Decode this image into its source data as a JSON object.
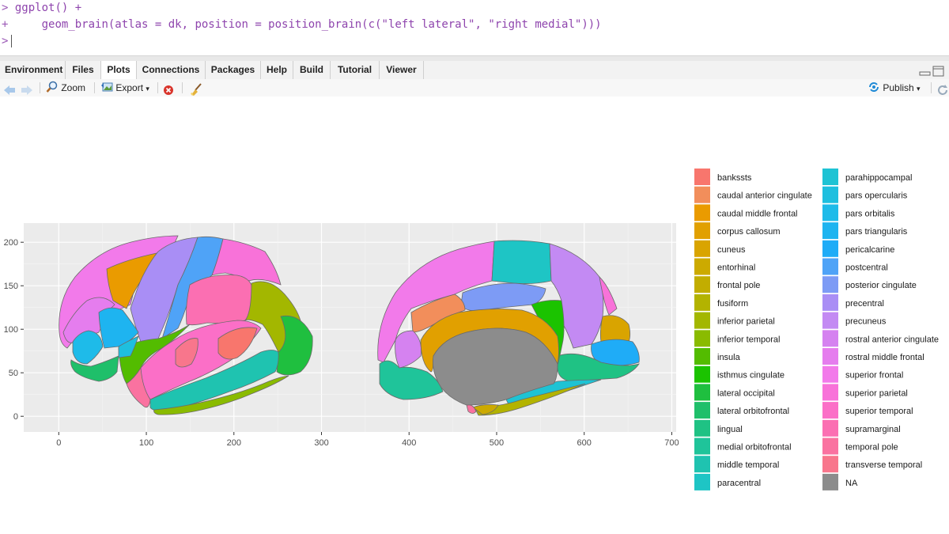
{
  "console": {
    "line1_prompt": ">",
    "line1_code": "ggplot() +",
    "line2_prompt": "+",
    "line2_code": "geom_brain(atlas = dk, position = position_brain(c(\"left lateral\", \"right medial\")))",
    "line3_prompt": ">"
  },
  "tabs": [
    "Environment",
    "Files",
    "Plots",
    "Connections",
    "Packages",
    "Help",
    "Build",
    "Tutorial",
    "Viewer"
  ],
  "active_tab": "Plots",
  "toolbar": {
    "zoom_label": "Zoom",
    "export_label": "Export",
    "publish_label": "Publish"
  },
  "icons": {
    "back": "back-arrow-icon",
    "forward": "forward-arrow-icon",
    "zoom": "magnifier-icon",
    "export": "export-image-icon",
    "remove": "remove-plot-icon",
    "clear": "broom-icon",
    "publish": "publish-icon",
    "refresh": "refresh-icon",
    "minimize": "minimize-icon",
    "maximize": "maximize-icon"
  },
  "colors": {
    "panel_bg": "#ebebeb",
    "active_tab_bg": "#ffffff",
    "code": "#8e44ad",
    "publish_blue": "#1f8ad6"
  },
  "chart_data": {
    "type": "map",
    "title": "",
    "xlabel": "",
    "ylabel": "",
    "xlim": [
      -40,
      705
    ],
    "ylim": [
      -18,
      222
    ],
    "xticks": [
      0,
      100,
      200,
      300,
      400,
      500,
      600,
      700
    ],
    "yticks": [
      0,
      50,
      100,
      150,
      200
    ],
    "grid": true,
    "legend_position": "right",
    "legend": [
      {
        "label": "bankssts",
        "color": "#F8766D"
      },
      {
        "label": "caudal anterior cingulate",
        "color": "#F28E5B"
      },
      {
        "label": "caudal middle frontal",
        "color": "#EA9B00"
      },
      {
        "label": "corpus callosum",
        "color": "#E1A000"
      },
      {
        "label": "cuneus",
        "color": "#D9A400"
      },
      {
        "label": "entorhinal",
        "color": "#CCAA00"
      },
      {
        "label": "frontal pole",
        "color": "#C2AD00"
      },
      {
        "label": "fusiform",
        "color": "#B3B300"
      },
      {
        "label": "inferior parietal",
        "color": "#A3B700"
      },
      {
        "label": "inferior temporal",
        "color": "#8ABB00"
      },
      {
        "label": "insula",
        "color": "#53BC00"
      },
      {
        "label": "isthmus cingulate",
        "color": "#1BC300"
      },
      {
        "label": "lateral occipital",
        "color": "#1FBF3F"
      },
      {
        "label": "lateral orbitofrontal",
        "color": "#1FBF6A"
      },
      {
        "label": "lingual",
        "color": "#1FC284"
      },
      {
        "label": "medial orbitofrontal",
        "color": "#1FC49A"
      },
      {
        "label": "middle temporal",
        "color": "#1FC3B0"
      },
      {
        "label": "paracentral",
        "color": "#1EC5C5"
      },
      {
        "label": "parahippocampal",
        "color": "#1EC3D4"
      },
      {
        "label": "pars opercularis",
        "color": "#1EBFDF"
      },
      {
        "label": "pars orbitalis",
        "color": "#1EBBE9"
      },
      {
        "label": "pars triangularis",
        "color": "#1EB4F0"
      },
      {
        "label": "pericalcarine",
        "color": "#1FACF7"
      },
      {
        "label": "postcentral",
        "color": "#4FA3F7"
      },
      {
        "label": "posterior cingulate",
        "color": "#7D9BF5"
      },
      {
        "label": "precentral",
        "color": "#A98EF5"
      },
      {
        "label": "precuneus",
        "color": "#C38AF3"
      },
      {
        "label": "rostral anterior cingulate",
        "color": "#D582F0"
      },
      {
        "label": "rostral middle frontal",
        "color": "#E57DEE"
      },
      {
        "label": "superior frontal",
        "color": "#F27AEA"
      },
      {
        "label": "superior parietal",
        "color": "#F872D9"
      },
      {
        "label": "superior temporal",
        "color": "#FB6FC7"
      },
      {
        "label": "supramarginal",
        "color": "#FB6FB2"
      },
      {
        "label": "temporal pole",
        "color": "#FA72A0"
      },
      {
        "label": "transverse temporal",
        "color": "#F8768C"
      },
      {
        "label": "NA",
        "color": "#8C8C8C"
      }
    ]
  }
}
